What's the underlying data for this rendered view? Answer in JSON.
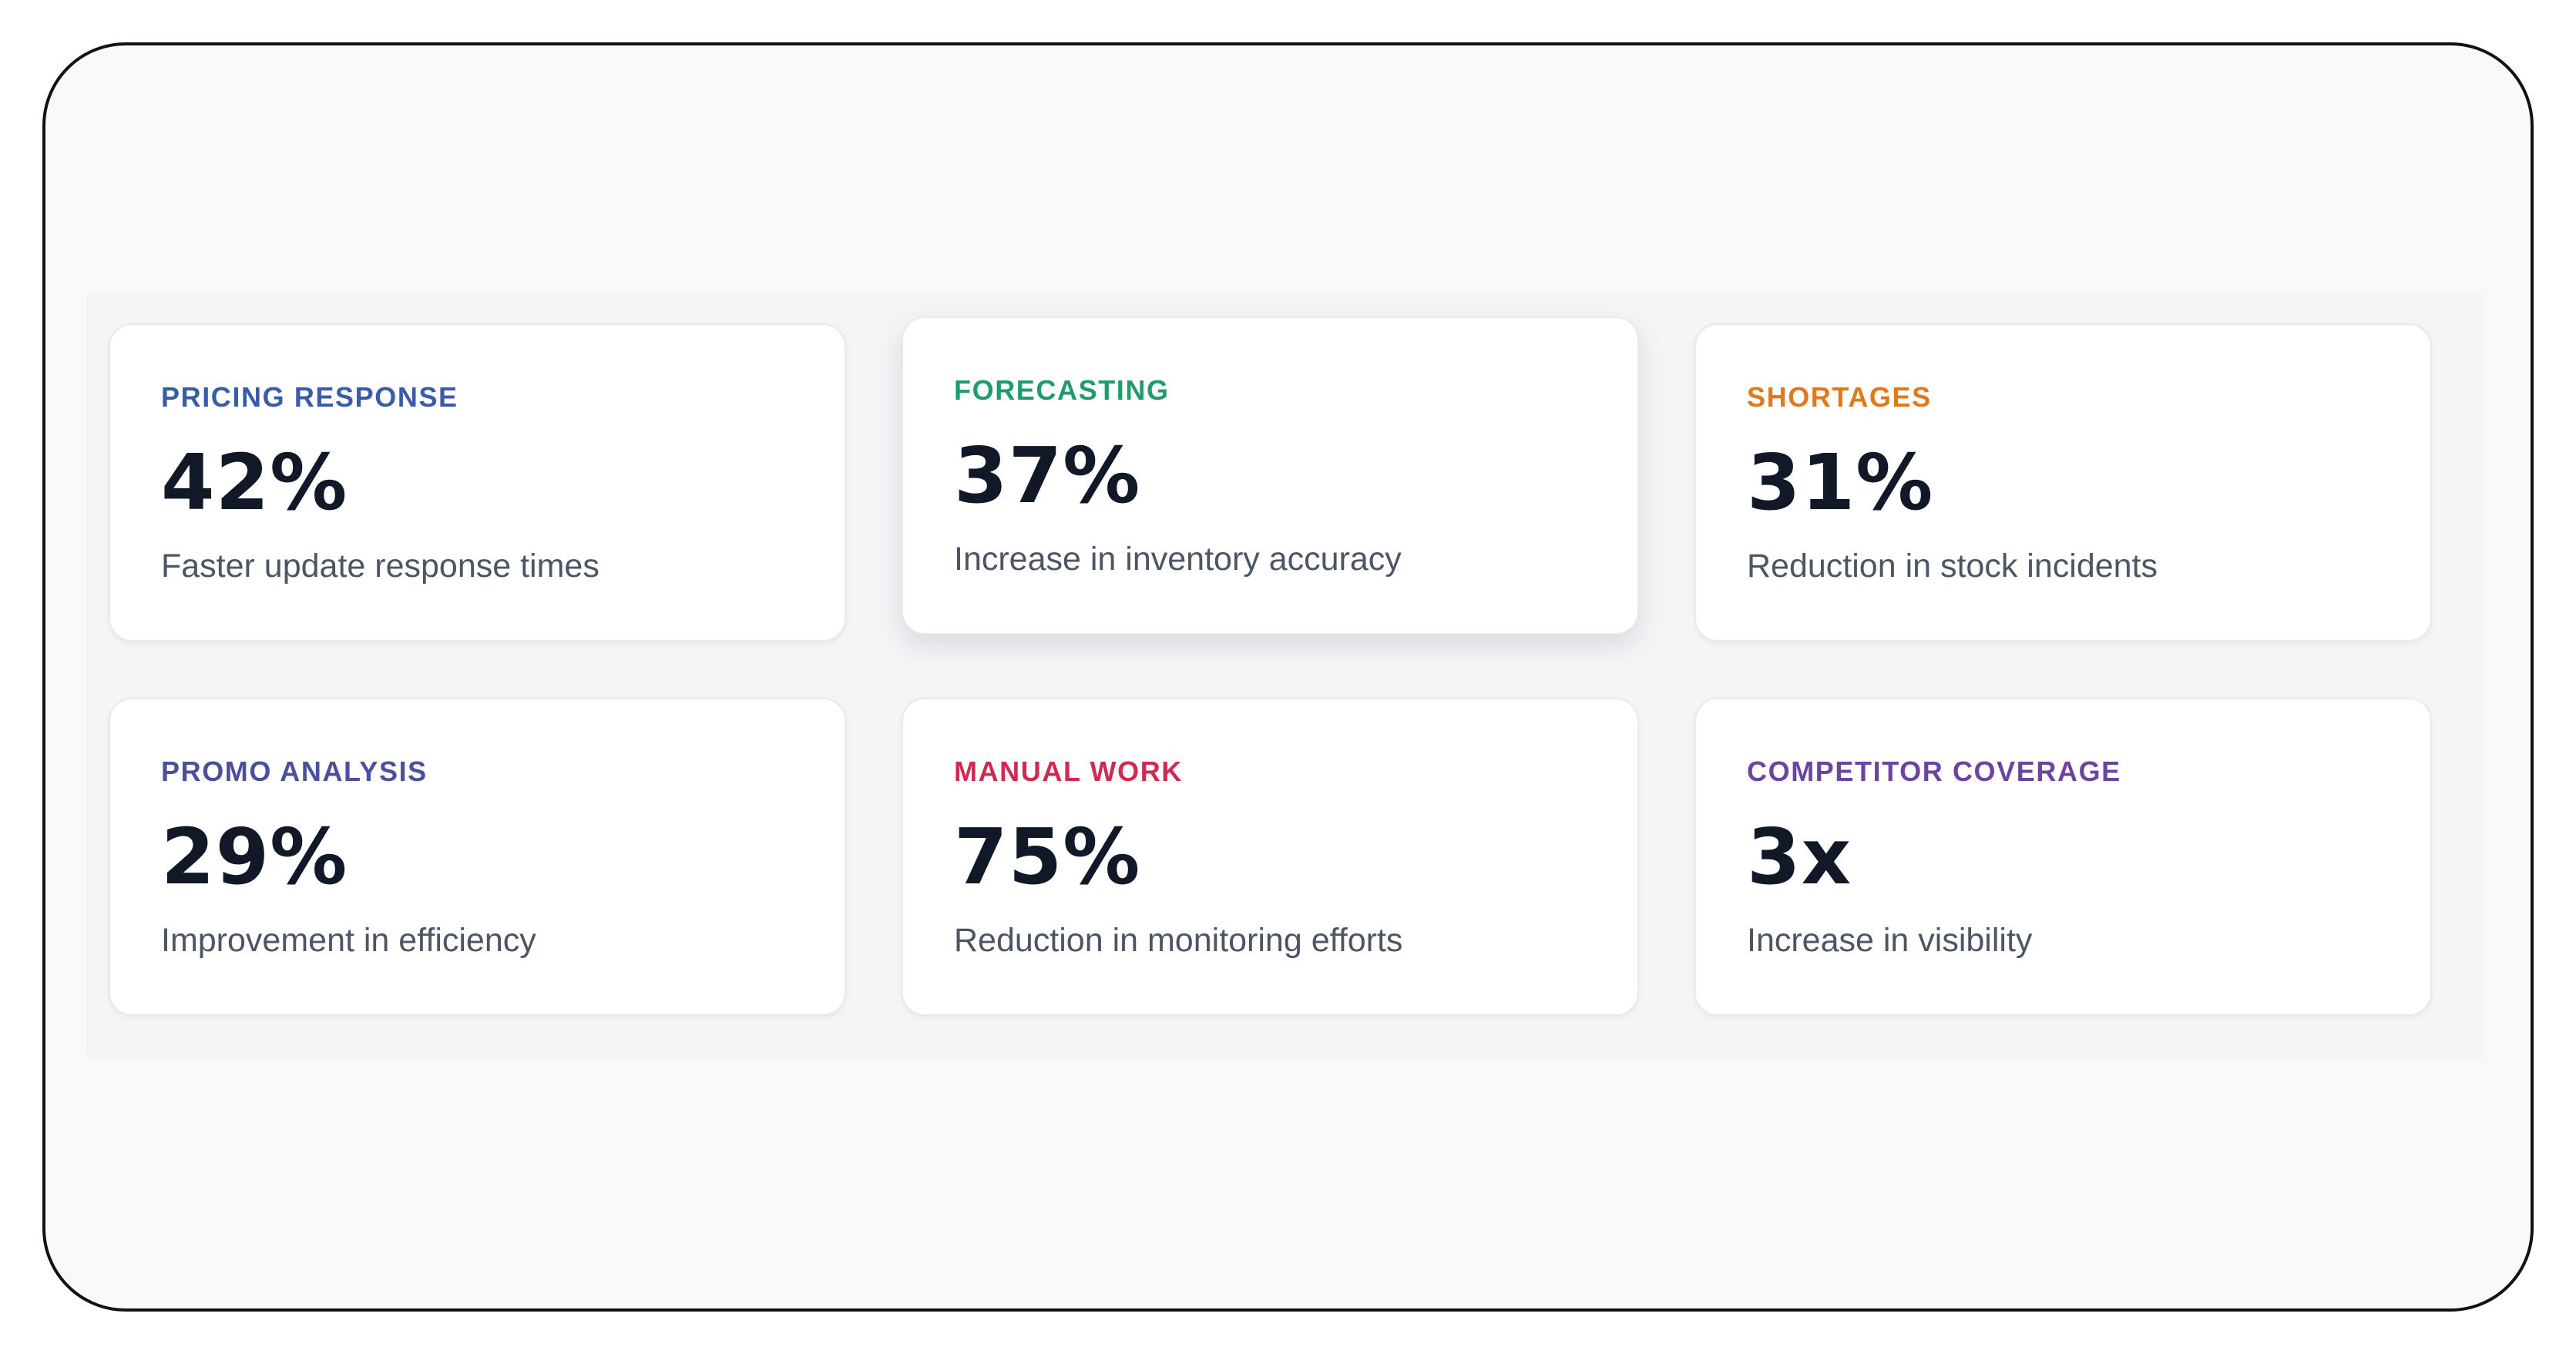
{
  "cards": [
    {
      "label": "PRICING RESPONSE",
      "value": "42%",
      "description": "Faster update response times"
    },
    {
      "label": "FORECASTING",
      "value": "37%",
      "description": "Increase in inventory accuracy"
    },
    {
      "label": "SHORTAGES",
      "value": "31%",
      "description": "Reduction in stock incidents"
    },
    {
      "label": "PROMO ANALYSIS",
      "value": "29%",
      "description": "Improvement in efficiency"
    },
    {
      "label": "MANUAL WORK",
      "value": "75%",
      "description": "Reduction in monitoring efforts"
    },
    {
      "label": "COMPETITOR COVERAGE",
      "value": "3x",
      "description": "Increase in visibility"
    }
  ]
}
